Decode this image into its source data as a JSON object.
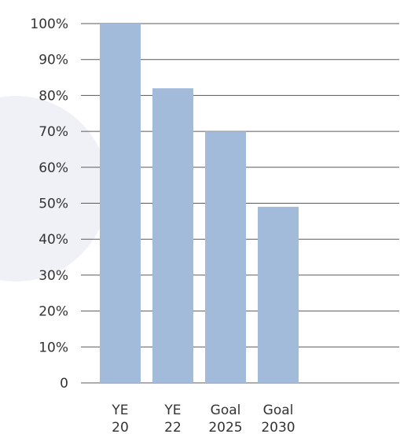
{
  "chart_data": {
    "type": "bar",
    "categories": [
      [
        "YE",
        "20"
      ],
      [
        "YE",
        "22"
      ],
      [
        "Goal",
        "2025"
      ],
      [
        "Goal",
        "2030"
      ]
    ],
    "values": [
      100,
      82,
      70,
      49
    ],
    "yticks": [
      "0",
      "10%",
      "20%",
      "30%",
      "40%",
      "50%",
      "60%",
      "70%",
      "80%",
      "90%",
      "100%"
    ],
    "ylim": [
      0,
      100
    ],
    "grid": true,
    "title": "",
    "xlabel": "",
    "ylabel": ""
  },
  "colors": {
    "bar": "#a2bbdb",
    "grid": "#5a5a5a",
    "text": "#333333",
    "background_circle": "#eff1f6"
  }
}
